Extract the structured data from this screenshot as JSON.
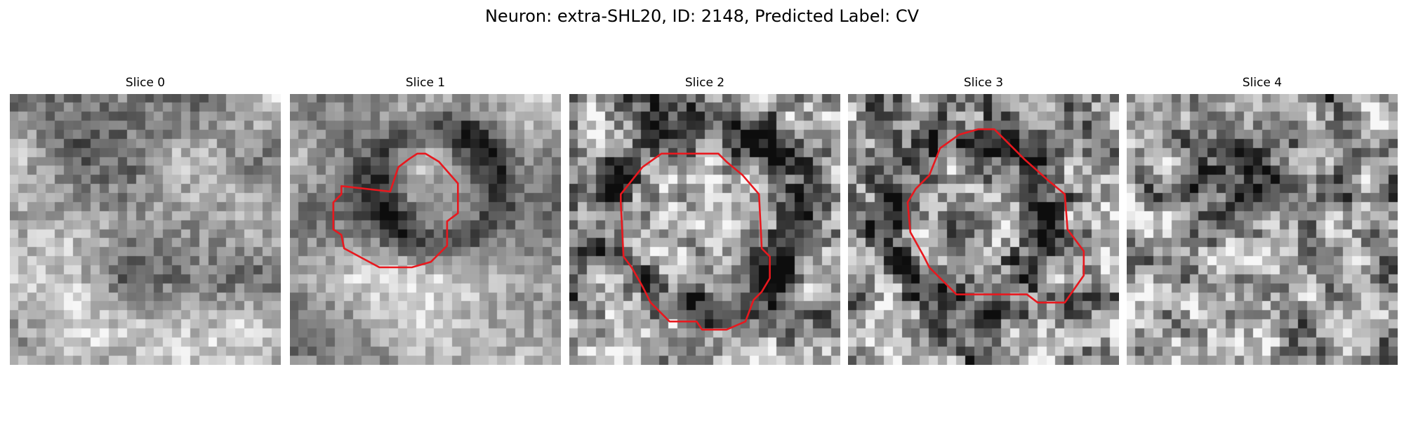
{
  "figure": {
    "suptitle": "Neuron: extra-SHL20, ID: 2148, Predicted Label: CV",
    "contour_color": "#e8181e",
    "panels": [
      {
        "title": "Slice 0",
        "texture": {
          "seed": 11,
          "scale": 3,
          "dark_blob": null,
          "noise": 0.35
        },
        "contour": null
      },
      {
        "title": "Slice 1",
        "texture": {
          "seed": 23,
          "scale": 3,
          "ring": [
            0.55,
            0.35,
            0.22,
            0.12
          ],
          "noise": 0.3
        },
        "contour": [
          [
            0.37,
            0.36
          ],
          [
            0.4,
            0.27
          ],
          [
            0.44,
            0.24
          ],
          [
            0.47,
            0.22
          ],
          [
            0.5,
            0.22
          ],
          [
            0.55,
            0.25
          ],
          [
            0.62,
            0.33
          ],
          [
            0.62,
            0.44
          ],
          [
            0.58,
            0.47
          ],
          [
            0.58,
            0.56
          ],
          [
            0.52,
            0.62
          ],
          [
            0.45,
            0.64
          ],
          [
            0.33,
            0.64
          ],
          [
            0.2,
            0.57
          ],
          [
            0.19,
            0.52
          ],
          [
            0.16,
            0.5
          ],
          [
            0.16,
            0.4
          ],
          [
            0.19,
            0.37
          ],
          [
            0.19,
            0.34
          ]
        ]
      },
      {
        "title": "Slice 2",
        "texture": {
          "seed": 37,
          "scale": 1,
          "ring": [
            0.5,
            0.45,
            0.34,
            0.12
          ],
          "noise": 0.5
        },
        "contour": [
          [
            0.19,
            0.37
          ],
          [
            0.27,
            0.27
          ],
          [
            0.34,
            0.22
          ],
          [
            0.55,
            0.22
          ],
          [
            0.58,
            0.25
          ],
          [
            0.64,
            0.3
          ],
          [
            0.7,
            0.37
          ],
          [
            0.71,
            0.57
          ],
          [
            0.74,
            0.6
          ],
          [
            0.74,
            0.68
          ],
          [
            0.71,
            0.73
          ],
          [
            0.68,
            0.76
          ],
          [
            0.65,
            0.84
          ],
          [
            0.58,
            0.87
          ],
          [
            0.49,
            0.87
          ],
          [
            0.47,
            0.84
          ],
          [
            0.37,
            0.84
          ],
          [
            0.3,
            0.77
          ],
          [
            0.27,
            0.71
          ],
          [
            0.23,
            0.64
          ],
          [
            0.2,
            0.6
          ],
          [
            0.19,
            0.4
          ]
        ]
      },
      {
        "title": "Slice 3",
        "texture": {
          "seed": 53,
          "scale": 1,
          "ring": [
            0.45,
            0.47,
            0.3,
            0.12
          ],
          "noise": 0.55
        },
        "contour": [
          [
            0.3,
            0.3
          ],
          [
            0.34,
            0.2
          ],
          [
            0.41,
            0.15
          ],
          [
            0.48,
            0.13
          ],
          [
            0.54,
            0.13
          ],
          [
            0.58,
            0.17
          ],
          [
            0.65,
            0.24
          ],
          [
            0.74,
            0.32
          ],
          [
            0.8,
            0.37
          ],
          [
            0.81,
            0.5
          ],
          [
            0.87,
            0.58
          ],
          [
            0.87,
            0.67
          ],
          [
            0.8,
            0.77
          ],
          [
            0.7,
            0.77
          ],
          [
            0.66,
            0.74
          ],
          [
            0.4,
            0.74
          ],
          [
            0.3,
            0.64
          ],
          [
            0.28,
            0.6
          ],
          [
            0.23,
            0.51
          ],
          [
            0.22,
            0.4
          ],
          [
            0.25,
            0.35
          ]
        ]
      },
      {
        "title": "Slice 4",
        "texture": {
          "seed": 71,
          "scale": 1,
          "dark_blob": [
            0.45,
            0.27,
            0.16,
            0.2
          ],
          "noise": 0.5
        },
        "contour": null
      }
    ]
  }
}
